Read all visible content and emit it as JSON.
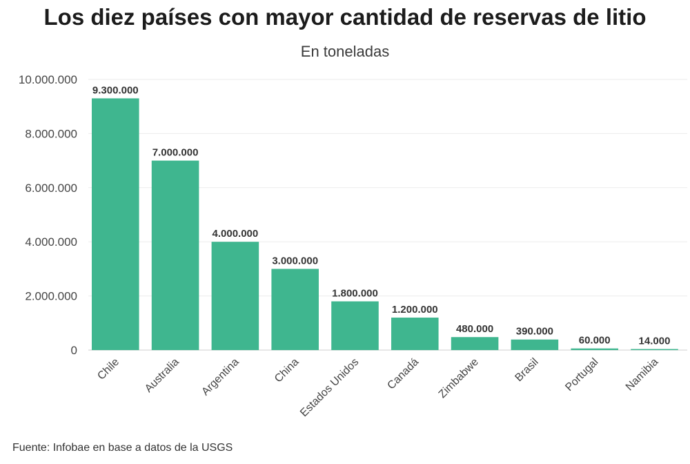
{
  "chart_data": {
    "type": "bar",
    "title": "Los diez países con mayor cantidad de reservas de litio",
    "subtitle": "En toneladas",
    "categories": [
      "Chile",
      "Australia",
      "Argentina",
      "China",
      "Estados Unidos",
      "Canadá",
      "Zimbabwe",
      "Brasil",
      "Portugal",
      "Namibia"
    ],
    "values": [
      9300000,
      7000000,
      4000000,
      3000000,
      1800000,
      1200000,
      480000,
      390000,
      60000,
      14000
    ],
    "data_labels": [
      "9.300.000",
      "7.000.000",
      "4.000.000",
      "3.000.000",
      "1.800.000",
      "1.200.000",
      "480.000",
      "390.000",
      "60.000",
      "14.000"
    ],
    "yticks": [
      0,
      2000000,
      4000000,
      6000000,
      8000000,
      10000000
    ],
    "ytick_labels": [
      "0",
      "2.000.000",
      "4.000.000",
      "6.000.000",
      "8.000.000",
      "10.000.000"
    ],
    "ylim": [
      0,
      10000000
    ],
    "xlabel": "",
    "ylabel": "",
    "grid": true,
    "bar_color": "#3fb68f"
  },
  "source": "Fuente: Infobae en base a datos de la USGS"
}
